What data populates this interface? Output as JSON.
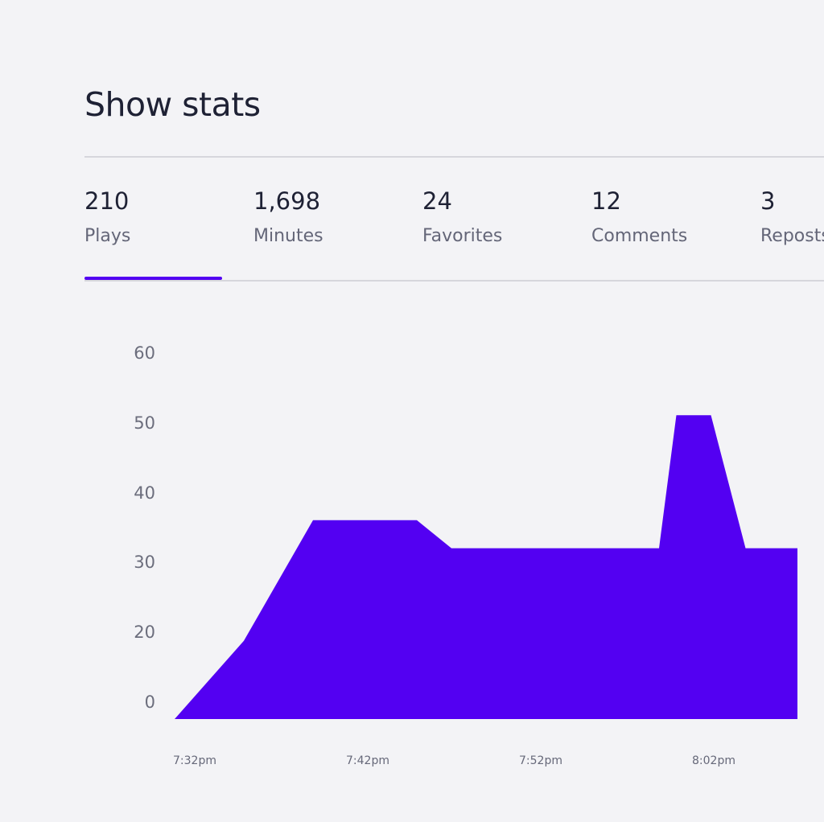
{
  "header": {
    "title": "Show stats"
  },
  "tabs": [
    {
      "value": "210",
      "label": "Plays",
      "selected": true
    },
    {
      "value": "1,698",
      "label": "Minutes",
      "selected": false
    },
    {
      "value": "24",
      "label": "Favorites",
      "selected": false
    },
    {
      "value": "12",
      "label": "Comments",
      "selected": false
    },
    {
      "value": "3",
      "label": "Reposts",
      "selected": false
    }
  ],
  "colors": {
    "accent": "#5300f2",
    "background": "#f3f3f6",
    "text": "#1e2134",
    "muted": "#646678"
  },
  "chart_data": {
    "type": "area",
    "x": [
      "7:32pm",
      "7:36pm",
      "7:40pm",
      "7:44pm",
      "7:46pm",
      "7:48pm",
      "7:52pm",
      "7:56pm",
      "8:00pm",
      "8:01pm",
      "8:03pm",
      "8:05pm",
      "8:08pm"
    ],
    "values": [
      0,
      18,
      36,
      36,
      36,
      32,
      32,
      32,
      32,
      51,
      51,
      32,
      32
    ],
    "y_ticks": [
      60,
      50,
      40,
      30,
      20,
      0
    ],
    "x_tick_labels": [
      "7:32pm",
      "7:42pm",
      "7:52pm",
      "8:02pm"
    ],
    "series": [
      {
        "name": "Plays",
        "color": "#5300f2",
        "values": [
          0,
          18,
          36,
          36,
          36,
          32,
          32,
          32,
          32,
          51,
          51,
          32,
          32
        ]
      }
    ],
    "legend": "none",
    "grid": false
  }
}
